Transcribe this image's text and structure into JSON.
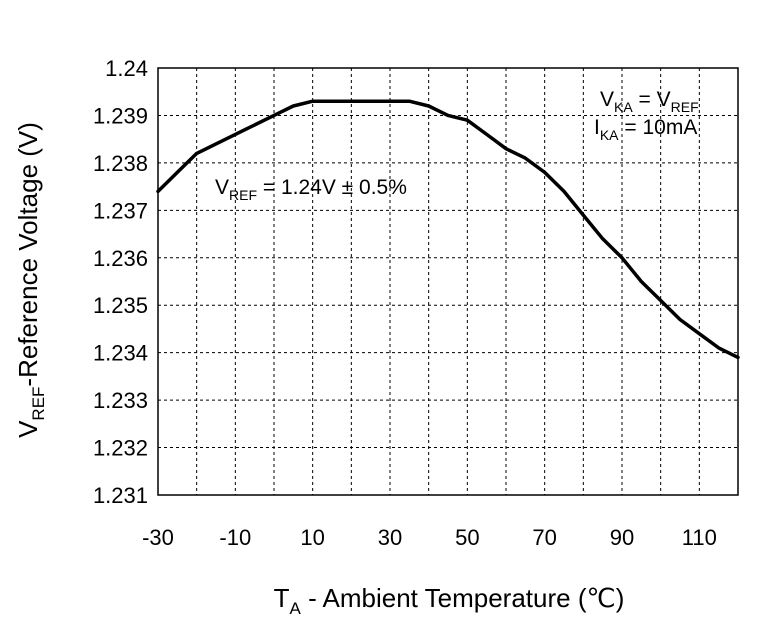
{
  "chart_data": {
    "type": "line",
    "title": "",
    "xlabel": {
      "main": "T",
      "sub": "A",
      "rest": " - Ambient Temperature (",
      "unit": "℃",
      "close": ")"
    },
    "ylabel": {
      "main": "V",
      "sub": "REF",
      "rest": "-Reference Voltage (V)"
    },
    "xlim": [
      -30,
      120
    ],
    "ylim": [
      1.231,
      1.24
    ],
    "grid": true,
    "x_ticks": [
      "-30",
      "-10",
      "10",
      "30",
      "50",
      "70",
      "90",
      "110"
    ],
    "x_tick_values": [
      -30,
      -10,
      10,
      30,
      50,
      70,
      90,
      110
    ],
    "x_grid_values": [
      -30,
      -20,
      -10,
      0,
      10,
      20,
      30,
      40,
      50,
      60,
      70,
      80,
      90,
      100,
      110,
      120
    ],
    "y_ticks": [
      "1.24",
      "1.239",
      "1.238",
      "1.237",
      "1.236",
      "1.235",
      "1.234",
      "1.233",
      "1.232",
      "1.231"
    ],
    "y_tick_values": [
      1.24,
      1.239,
      1.238,
      1.237,
      1.236,
      1.235,
      1.234,
      1.233,
      1.232,
      1.231
    ],
    "series": [
      {
        "name": "VREF",
        "x": [
          -30,
          -25,
          -20,
          -15,
          -10,
          -5,
          0,
          5,
          10,
          15,
          20,
          25,
          30,
          35,
          40,
          45,
          50,
          55,
          60,
          65,
          70,
          75,
          80,
          85,
          90,
          95,
          100,
          105,
          110,
          115,
          120
        ],
        "y": [
          1.2374,
          1.2378,
          1.2382,
          1.2384,
          1.2386,
          1.2388,
          1.239,
          1.2392,
          1.2393,
          1.2393,
          1.2393,
          1.2393,
          1.2393,
          1.2393,
          1.2392,
          1.239,
          1.2389,
          1.2386,
          1.2383,
          1.2381,
          1.2378,
          1.2374,
          1.2369,
          1.2364,
          1.236,
          1.2355,
          1.2351,
          1.2347,
          1.2344,
          1.2341,
          1.2339
        ]
      }
    ],
    "annotations": [
      {
        "main": "V",
        "sub": "REF",
        "rest": " = 1.24V ± 0.5%"
      },
      {
        "main": "V",
        "sub": "KA",
        "rest": " = V",
        "sub2": "REF"
      },
      {
        "main": "I",
        "sub": "KA",
        "rest": " = 10mA"
      }
    ]
  }
}
